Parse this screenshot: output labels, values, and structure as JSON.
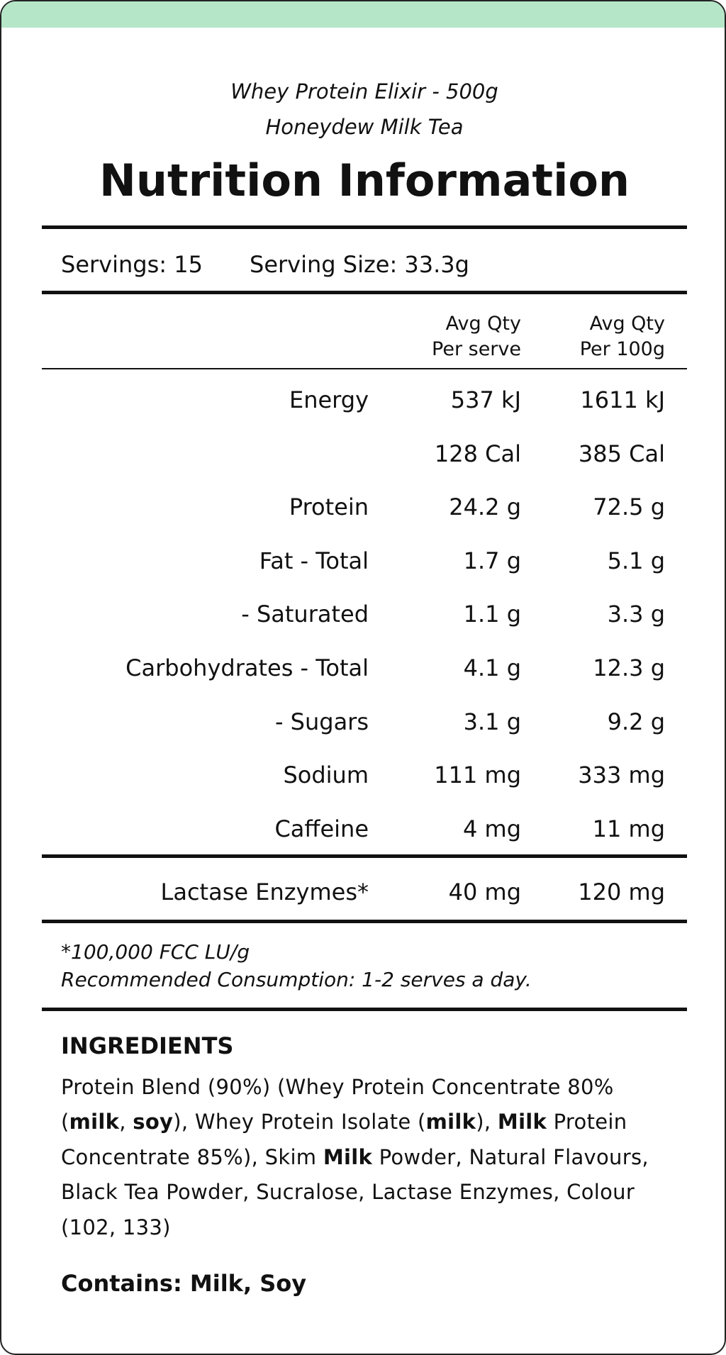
{
  "header": {
    "product": "Whey Protein Elixir - 500g",
    "flavour": "Honeydew Milk Tea",
    "title": "Nutrition Information"
  },
  "servings": {
    "servings": "Servings: 15",
    "serving_size": "Serving Size: 33.3g"
  },
  "table": {
    "columns": [
      [
        "Avg Qty",
        "Per serve"
      ],
      [
        "Avg Qty",
        "Per 100g"
      ]
    ],
    "rows": [
      [
        "Energy",
        "537 kJ",
        "1611 kJ"
      ],
      [
        null,
        "128 Cal",
        "385 Cal"
      ],
      [
        "Protein",
        "24.2 g",
        "72.5 g"
      ],
      [
        "Fat - Total",
        "1.7 g",
        "5.1 g"
      ],
      [
        "- Saturated",
        "1.1 g",
        "3.3 g"
      ],
      [
        "Carbohydrates - Total",
        "4.1 g",
        "12.3 g"
      ],
      [
        "- Sugars",
        "3.1 g",
        "9.2 g"
      ],
      [
        "Sodium",
        "111 mg",
        "333 mg"
      ],
      [
        "Caffeine",
        "4 mg",
        "11 mg"
      ]
    ],
    "enzymes": [
      "Lactase Enzymes*",
      "40 mg",
      "120 mg"
    ]
  },
  "footnotes": [
    "*100,000 FCC LU/g",
    "Recommended Consumption: 1-2 serves a day."
  ],
  "ingredients": {
    "heading": "INGREDIENTS",
    "segments": [
      {
        "text": "Protein Blend (90%) (Whey Protein Concentrate 80% ("
      },
      {
        "text": "milk",
        "bold": true
      },
      {
        "text": ", "
      },
      {
        "text": "soy",
        "bold": true
      },
      {
        "text": "), Whey Protein Isolate ("
      },
      {
        "text": "milk",
        "bold": true
      },
      {
        "text": "), "
      },
      {
        "text": "Milk",
        "bold": true
      },
      {
        "text": " Protein Concentrate 85%), Skim "
      },
      {
        "text": "Milk",
        "bold": true
      },
      {
        "text": " Powder, Natural Flavours, Black Tea Powder, Sucralose, Lactase Enzymes, Colour (102, 133)"
      }
    ],
    "contains": "Contains: Milk, Soy"
  }
}
